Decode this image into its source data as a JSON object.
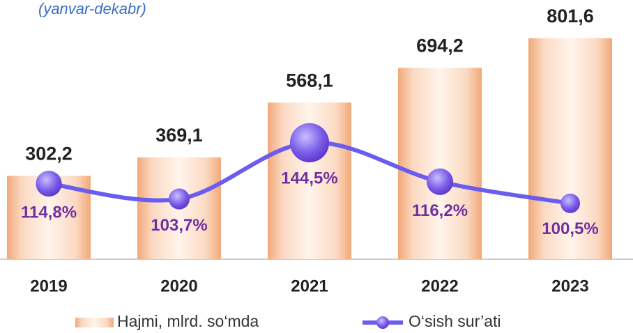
{
  "chart_data": {
    "type": "bar",
    "subtitle": "(yanvar-dekabr)",
    "categories": [
      "2019",
      "2020",
      "2021",
      "2022",
      "2023"
    ],
    "series": [
      {
        "name": "Hajmi, mlrd. so‘mda",
        "type": "bar",
        "color": "#f4b183",
        "values": [
          302.2,
          369.1,
          568.1,
          694.2,
          801.6
        ],
        "value_labels": [
          "302,2",
          "369,1",
          "568,1",
          "694,2",
          "801,6"
        ]
      },
      {
        "name": "O‘sish sur’ati",
        "type": "line",
        "axis": "y2",
        "color": "#6b5cf0",
        "values": [
          114.8,
          103.7,
          144.5,
          116.2,
          100.5
        ],
        "value_labels": [
          "114,8%",
          "103,7%",
          "144,5%",
          "116,2%",
          "100,5%"
        ]
      }
    ],
    "ylim": [
      0,
      900
    ],
    "y2lim": [
      60,
      240
    ],
    "legend": "bottom"
  }
}
